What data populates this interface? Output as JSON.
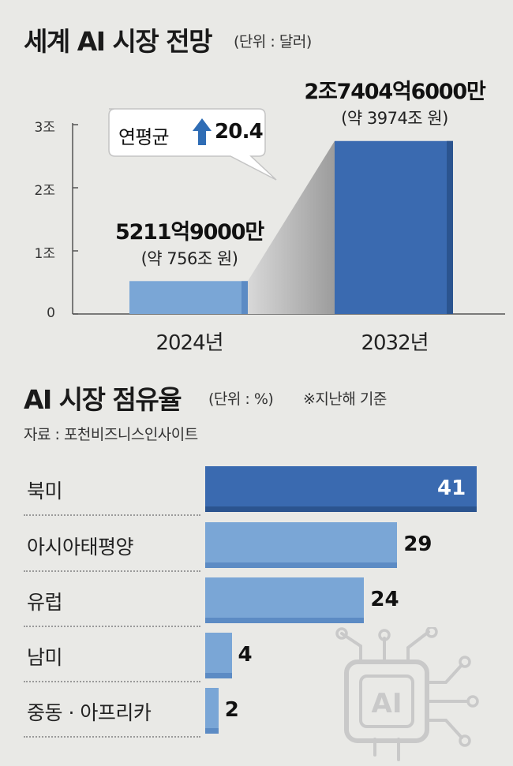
{
  "chart_data": [
    {
      "type": "bar",
      "title": "세계 AI 시장 전망",
      "unit_label": "(단위 : 달러)",
      "categories": [
        "2024년",
        "2032년"
      ],
      "values": [
        0.52119,
        2.74046
      ],
      "value_labels": [
        "5211억9000만",
        "2조7404억6000만"
      ],
      "value_sublabels": [
        "(약 756조 원)",
        "(약 3974조 원)"
      ],
      "yticks": [
        "0",
        "1조",
        "2조",
        "3조"
      ],
      "ylim": [
        0,
        3.2
      ],
      "annotation": {
        "label": "연평균",
        "value": "20.4"
      },
      "colors": {
        "bar_2024": "#7aa6d6",
        "bar_2032": "#3a6ab0"
      }
    },
    {
      "type": "bar",
      "orientation": "horizontal",
      "title": "AI 시장 점유율",
      "unit_label": "(단위 : %)",
      "note": "※지난해 기준",
      "source": "자료 : 포천비즈니스인사이트",
      "categories": [
        "북미",
        "아시아태평양",
        "유럽",
        "남미",
        "중동 · 아프리카"
      ],
      "values": [
        41,
        29,
        24,
        4,
        2
      ],
      "value_labels": [
        "41",
        "29",
        "24",
        "4",
        "2"
      ],
      "colors": {
        "highlight": "#3a6ab0",
        "normal": "#7aa6d6"
      }
    }
  ],
  "icon": {
    "label": "AI",
    "name": "ai-chip-icon"
  }
}
